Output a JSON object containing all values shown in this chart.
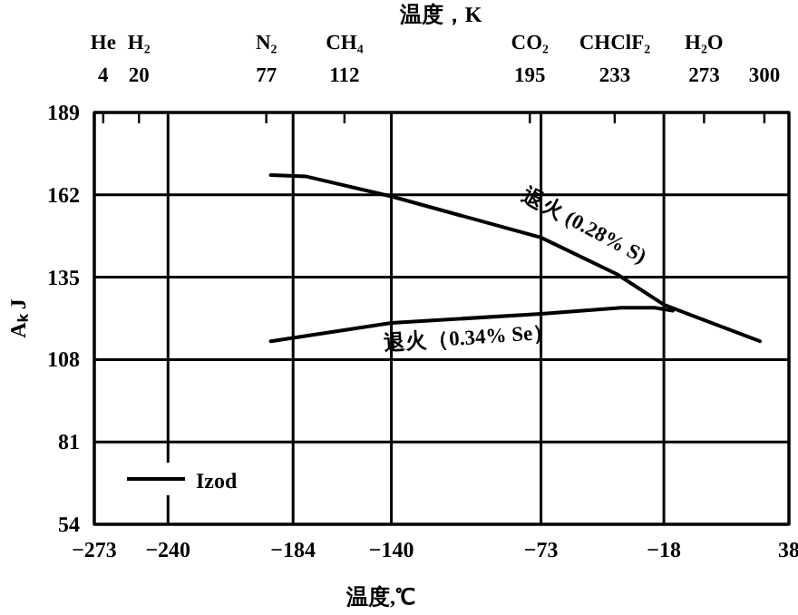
{
  "chart_data": {
    "type": "line",
    "x2label": "温度，K",
    "xlabel": "温度,℃",
    "ylabel": "Aₖ J",
    "xlim": [
      -273,
      38
    ],
    "xticks": [
      {
        "value": -273,
        "label": "−273"
      },
      {
        "value": -240,
        "label": "−240"
      },
      {
        "value": -184,
        "label": "−184"
      },
      {
        "value": -140,
        "label": "−140"
      },
      {
        "value": -73,
        "label": "−73"
      },
      {
        "value": -18,
        "label": "−18"
      },
      38
    ],
    "x2lim": [
      0,
      311
    ],
    "x2ticks": [
      4,
      20,
      77,
      112,
      195,
      233,
      273,
      300
    ],
    "annotations": [
      "He",
      "H₂",
      "N₂",
      "CH₄",
      "CO₂",
      "CHClF₂",
      "H₂O"
    ],
    "ylim": [
      54,
      189
    ],
    "yticks": [
      54,
      81,
      108,
      135,
      162,
      189
    ],
    "grid": true,
    "legend_title": "Izod",
    "series": [
      {
        "name": "退火 (0.28% S)",
        "color": "#000000",
        "x": [
          -194,
          -178,
          -140,
          -73,
          -39,
          -18,
          25
        ],
        "values": [
          168.5,
          168,
          161.5,
          148,
          136,
          126,
          114
        ]
      },
      {
        "name": "退火（0.34% Se）",
        "color": "#000000",
        "x": [
          -194,
          -140,
          -73,
          -37,
          -22,
          -14
        ],
        "values": [
          114,
          120,
          123,
          125,
          125,
          124
        ]
      }
    ]
  }
}
